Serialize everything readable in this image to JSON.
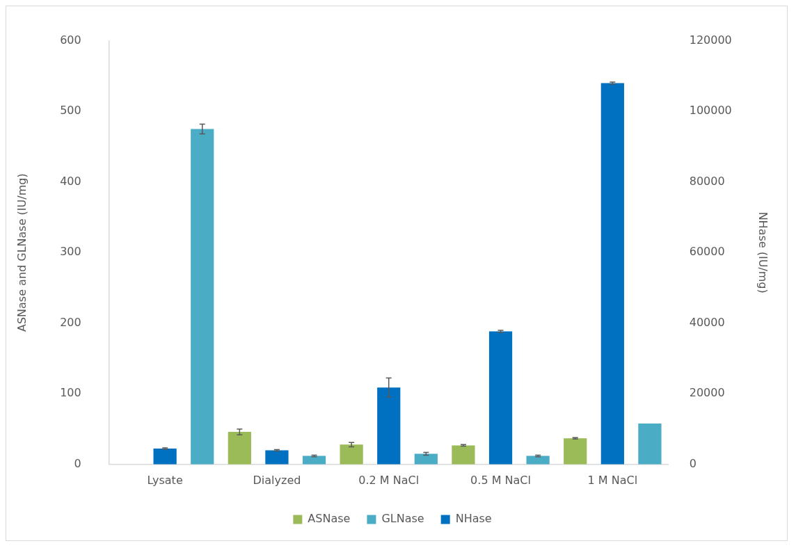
{
  "chart_data": {
    "type": "bar",
    "ylabel": "ASNase and GLNase (IU/mg)",
    "y2label": "NHase (IU/mg)",
    "categories": [
      "Lysate",
      "Dialyzed",
      "0.2 M NaCl",
      "0.5 M NaCl",
      "1 M NaCl"
    ],
    "series": [
      {
        "name": "ASNase",
        "color": "#9bbb59",
        "values": [
          null,
          46,
          28,
          27,
          37
        ],
        "errors": [
          null,
          4,
          3,
          1,
          1
        ]
      },
      {
        "name": "NHase",
        "color": "#0070c0",
        "axis": "y2",
        "values": [
          4500,
          4000,
          21800,
          37700,
          108000
        ],
        "errors": [
          200,
          200,
          2700,
          300,
          300
        ]
      },
      {
        "name": "GLNase",
        "color": "#4bacc6",
        "values": [
          475,
          12,
          15,
          12,
          58
        ],
        "errors": [
          7,
          1,
          2,
          1,
          null
        ]
      }
    ],
    "ylim": [
      0,
      600
    ],
    "yticks": [
      0,
      100,
      200,
      300,
      400,
      500,
      600
    ],
    "y2lim": [
      0,
      120000
    ],
    "y2ticks": [
      0,
      20000,
      40000,
      60000,
      80000,
      100000,
      120000
    ],
    "grid": false,
    "legend": "bottom"
  }
}
